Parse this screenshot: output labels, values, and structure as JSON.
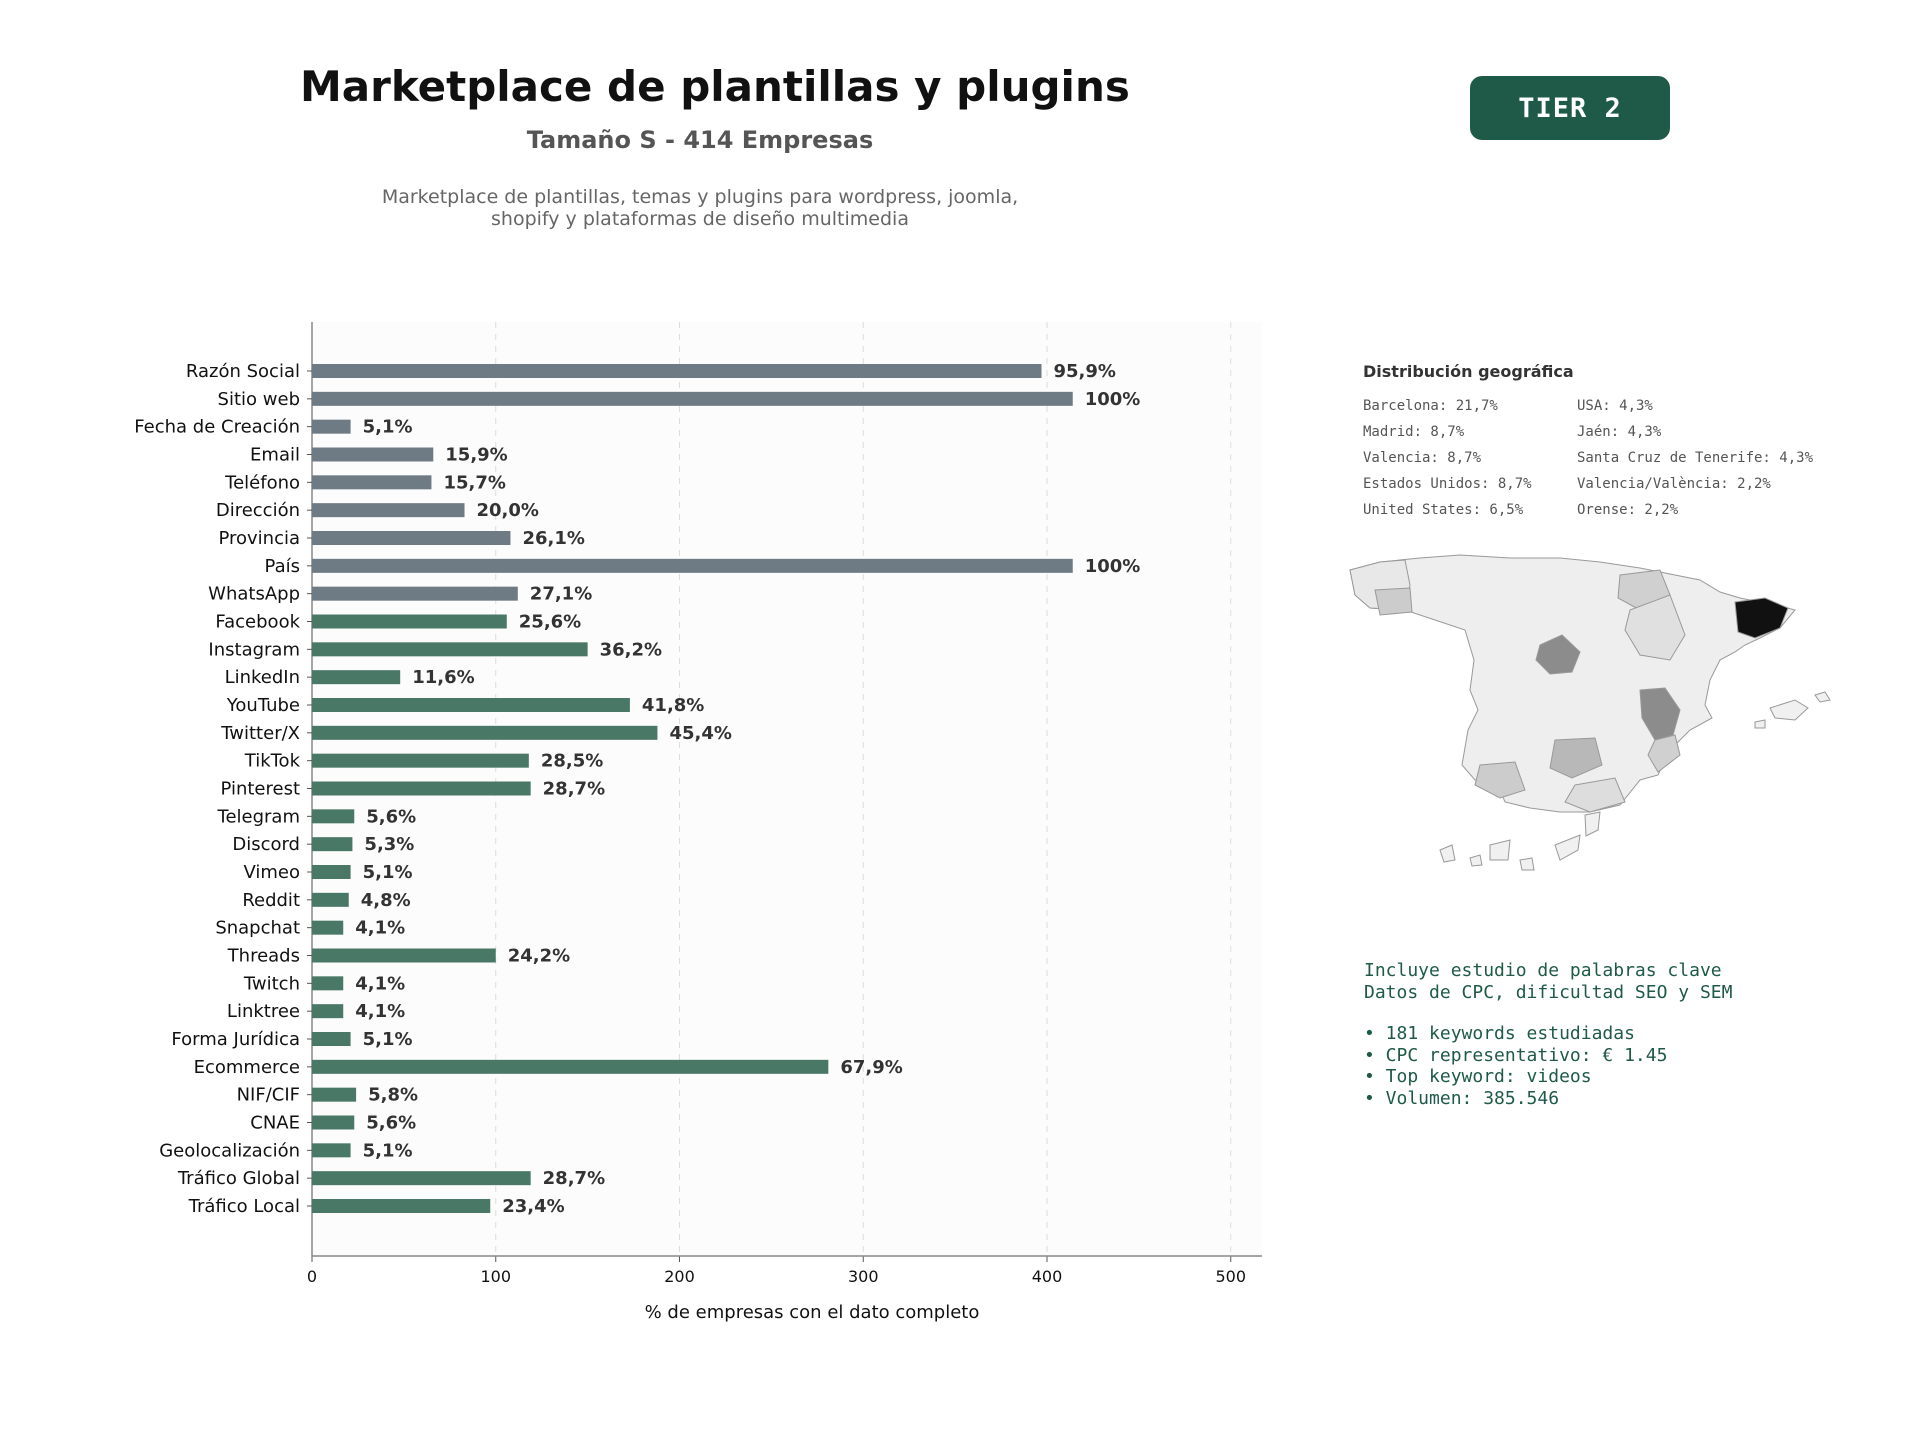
{
  "header": {
    "title": "Marketplace de plantillas y plugins",
    "subtitle": "Tamaño S - 414 Empresas",
    "description_line1": "Marketplace de plantillas, temas y plugins para wordpress, joomla,",
    "description_line2": "shopify y plataformas de diseño multimedia"
  },
  "badge": {
    "label": "TIER 2"
  },
  "chart_data": {
    "type": "bar",
    "orientation": "horizontal",
    "xlabel": "% de empresas con el dato completo",
    "xlim": [
      0,
      517
    ],
    "xticks": [
      0,
      100,
      200,
      300,
      400,
      500
    ],
    "grid": true,
    "categories": [
      "Razón Social",
      "Sitio web",
      "Fecha de Creación",
      "Email",
      "Teléfono",
      "Dirección",
      "Provincia",
      "País",
      "WhatsApp",
      "Facebook",
      "Instagram",
      "LinkedIn",
      "YouTube",
      "Twitter/X",
      "TikTok",
      "Pinterest",
      "Telegram",
      "Discord",
      "Vimeo",
      "Reddit",
      "Snapchat",
      "Threads",
      "Twitch",
      "Linktree",
      "Forma Jurídica",
      "Ecommerce",
      "NIF/CIF",
      "CNAE",
      "Geolocalización",
      "Tráfico Global",
      "Tráfico Local"
    ],
    "values": [
      397,
      414,
      21,
      66,
      65,
      83,
      108,
      414,
      112,
      106,
      150,
      48,
      173,
      188,
      118,
      119,
      23,
      22,
      21,
      20,
      17,
      100,
      17,
      17,
      21,
      281,
      24,
      23,
      21,
      119,
      97
    ],
    "labels": [
      "95,9%",
      "100%",
      "5,1%",
      "15,9%",
      "15,7%",
      "20,0%",
      "26,1%",
      "100%",
      "27,1%",
      "25,6%",
      "36,2%",
      "11,6%",
      "41,8%",
      "45,4%",
      "28,5%",
      "28,7%",
      "5,6%",
      "5,3%",
      "5,1%",
      "4,8%",
      "4,1%",
      "24,2%",
      "4,1%",
      "4,1%",
      "5,1%",
      "67,9%",
      "5,8%",
      "5,6%",
      "5,1%",
      "28,7%",
      "23,4%"
    ],
    "colors": {
      "basic": "#6e7a84",
      "digital": "#4a7866",
      "first_digital_index": 9
    }
  },
  "geo": {
    "title": "Distribución geográfica",
    "col1": [
      "Barcelona: 21,7%",
      "Madrid: 8,7%",
      "Valencia: 8,7%",
      "Estados Unidos: 8,7%",
      "United States: 6,5%"
    ],
    "col2": [
      "USA: 4,3%",
      "Jaén: 4,3%",
      "Santa Cruz de Tenerife: 4,3%",
      "Valencia/València: 2,2%",
      "Orense: 2,2%"
    ]
  },
  "info": {
    "line1": "Incluye estudio de palabras clave",
    "line2": "Datos de CPC, dificultad SEO y SEM",
    "bullets": [
      "• 181 keywords estudiadas",
      "• CPC representativo: € 1.45",
      "• Top keyword: videos",
      "• Volumen: 385.546"
    ]
  }
}
